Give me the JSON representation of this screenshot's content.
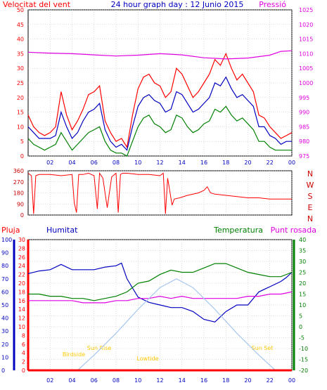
{
  "header": {
    "left_title": "Velocitat del vent",
    "center_title": "24 hour graph day : 12 Junio 2015",
    "right_title": "Pressió"
  },
  "colors": {
    "red": "#ff0000",
    "dark_red": "#cc0000",
    "green": "#008000",
    "blue": "#0000c0",
    "magenta": "#e000e0",
    "sky": "#a8c8f0",
    "yellow": "#ffc800",
    "grid": "#bbbbbb",
    "frame": "#000000"
  },
  "chart_data": [
    {
      "id": "wind",
      "type": "line",
      "title": "24 hour graph day : 12 Junio 2015",
      "ylabel_left": "Velocitat del vent",
      "ylabel_right": "Pressió",
      "ylim_left": [
        0,
        50
      ],
      "yticks_left": [
        0,
        5,
        10,
        15,
        20,
        25,
        30,
        35,
        40,
        45,
        50
      ],
      "ylim_right": [
        975,
        1025
      ],
      "yticks_right": [
        975,
        980,
        985,
        990,
        995,
        1000,
        1005,
        1010,
        1015,
        1020,
        1025
      ],
      "xlim": [
        0,
        24
      ],
      "xticks": [
        "02",
        "04",
        "06",
        "08",
        "10",
        "12",
        "14",
        "16",
        "18",
        "20",
        "22",
        "00"
      ],
      "grid": true,
      "series": [
        {
          "color": "red",
          "axis": "left",
          "x": [
            0,
            0.5,
            1,
            1.5,
            2,
            2.5,
            3,
            3.5,
            4,
            4.5,
            5,
            5.5,
            6,
            6.5,
            7,
            7.5,
            8,
            8.5,
            9,
            9.5,
            10,
            10.5,
            11,
            11.5,
            12,
            12.5,
            13,
            13.5,
            14,
            14.5,
            15,
            15.5,
            16,
            16.5,
            17,
            17.5,
            18,
            18.5,
            19,
            19.5,
            20,
            20.5,
            21,
            21.5,
            22,
            22.5,
            23,
            23.5,
            24
          ],
          "y": [
            14,
            10,
            8,
            7,
            8,
            10,
            22,
            14,
            9,
            12,
            16,
            21,
            22,
            24,
            12,
            8,
            5,
            6,
            3,
            14,
            23,
            27,
            28,
            25,
            24,
            20,
            22,
            30,
            28,
            24,
            20,
            22,
            25,
            28,
            33,
            31,
            35,
            30,
            26,
            28,
            25,
            22,
            14,
            13,
            10,
            8,
            6,
            7,
            8
          ]
        },
        {
          "color": "blue",
          "axis": "left",
          "x": [
            0,
            0.5,
            1,
            1.5,
            2,
            2.5,
            3,
            3.5,
            4,
            4.5,
            5,
            5.5,
            6,
            6.5,
            7,
            7.5,
            8,
            8.5,
            9,
            9.5,
            10,
            10.5,
            11,
            11.5,
            12,
            12.5,
            13,
            13.5,
            14,
            14.5,
            15,
            15.5,
            16,
            16.5,
            17,
            17.5,
            18,
            18.5,
            19,
            19.5,
            20,
            20.5,
            21,
            21.5,
            22,
            22.5,
            23,
            23.5,
            24
          ],
          "y": [
            10,
            8,
            6,
            6,
            6,
            7,
            15,
            10,
            6,
            8,
            12,
            15,
            16,
            18,
            9,
            5,
            3,
            4,
            2,
            10,
            17,
            20,
            21,
            19,
            18,
            15,
            16,
            22,
            21,
            18,
            15,
            16,
            18,
            20,
            25,
            24,
            27,
            23,
            20,
            21,
            19,
            17,
            10,
            10,
            7,
            6,
            4,
            5,
            5
          ]
        },
        {
          "color": "green",
          "axis": "left",
          "x": [
            0,
            0.5,
            1,
            1.5,
            2,
            2.5,
            3,
            3.5,
            4,
            4.5,
            5,
            5.5,
            6,
            6.5,
            7,
            7.5,
            8,
            8.5,
            9,
            9.5,
            10,
            10.5,
            11,
            11.5,
            12,
            12.5,
            13,
            13.5,
            14,
            14.5,
            15,
            15.5,
            16,
            16.5,
            17,
            17.5,
            18,
            18.5,
            19,
            19.5,
            20,
            20.5,
            21,
            21.5,
            22,
            22.5,
            23,
            23.5,
            24
          ],
          "y": [
            6,
            4,
            3,
            2,
            3,
            4,
            8,
            5,
            2,
            4,
            6,
            8,
            9,
            10,
            5,
            2,
            1,
            1,
            0,
            5,
            10,
            13,
            14,
            11,
            10,
            8,
            9,
            14,
            13,
            10,
            8,
            9,
            11,
            12,
            16,
            15,
            17,
            14,
            12,
            13,
            11,
            9,
            5,
            5,
            3,
            2,
            2,
            2,
            2
          ]
        },
        {
          "color": "magenta",
          "axis": "right",
          "x": [
            0,
            2,
            4,
            6,
            8,
            10,
            12,
            14,
            16,
            18,
            20,
            22,
            23,
            24
          ],
          "y": [
            1010.5,
            1010.2,
            1010,
            1009.6,
            1009.2,
            1009.5,
            1010,
            1009.6,
            1008.6,
            1008.2,
            1008.5,
            1009.5,
            1010.8,
            1011
          ]
        }
      ]
    },
    {
      "id": "direction",
      "type": "line",
      "ylim": [
        0,
        360
      ],
      "yticks": [
        0,
        90,
        180,
        270,
        360
      ],
      "ylabel_right": [
        "N",
        "W",
        "S",
        "E",
        "N"
      ],
      "xlim": [
        0,
        24
      ],
      "grid": true,
      "series": [
        {
          "color": "red",
          "x": [
            0,
            0.3,
            0.5,
            0.7,
            1,
            2,
            3,
            4,
            4.2,
            4.4,
            4.6,
            5,
            5.5,
            6,
            6.3,
            6.5,
            6.8,
            7.2,
            7.6,
            8,
            8.2,
            8.4,
            8.6,
            9,
            10,
            11,
            12,
            12.3,
            12.5,
            12.7,
            12.9,
            13.1,
            13.3,
            13.8,
            14.5,
            15,
            15.5,
            16,
            16.3,
            16.6,
            17,
            18,
            19,
            20,
            21,
            22,
            23,
            24
          ],
          "y": [
            340,
            320,
            10,
            320,
            330,
            330,
            320,
            330,
            100,
            20,
            330,
            330,
            340,
            320,
            50,
            340,
            300,
            60,
            310,
            340,
            20,
            330,
            340,
            340,
            330,
            330,
            320,
            340,
            10,
            300,
            190,
            80,
            130,
            140,
            160,
            170,
            180,
            200,
            230,
            180,
            170,
            160,
            150,
            140,
            140,
            130,
            130,
            130
          ]
        }
      ]
    },
    {
      "id": "thermo",
      "type": "line",
      "legend": [
        "Pluja",
        "Humitat",
        "Temperatura",
        "Punt rosada"
      ],
      "ylim_rain": [
        0,
        30
      ],
      "yticks_rain": [
        0,
        2,
        4,
        6,
        8,
        10,
        12,
        14,
        16,
        18,
        20,
        22,
        24,
        26,
        28,
        30
      ],
      "ylim_humidity": [
        0,
        100
      ],
      "yticks_humidity": [
        0,
        10,
        20,
        30,
        40,
        50,
        60,
        70,
        80,
        90,
        100
      ],
      "ylim_temperature": [
        -20,
        40
      ],
      "yticks_temperature": [
        -20,
        -15,
        -10,
        -5,
        0,
        5,
        10,
        15,
        20,
        25,
        30,
        35,
        40
      ],
      "xlim": [
        0,
        24
      ],
      "xticks": [
        "02",
        "04",
        "06",
        "08",
        "10",
        "12",
        "14",
        "16",
        "18",
        "20",
        "22",
        "00"
      ],
      "grid": true,
      "annotations": [
        "Birdside",
        "Sun Rise",
        "Lowtide",
        "Sun Set"
      ],
      "series": [
        {
          "name": "Humitat",
          "color": "blue",
          "axis": "humidity",
          "x": [
            0,
            1,
            2,
            3,
            4,
            5,
            6,
            7,
            8,
            8.5,
            9,
            10,
            11,
            12,
            13,
            14,
            15,
            16,
            17,
            18,
            19,
            20,
            21,
            22,
            23,
            23.5,
            24
          ],
          "y": [
            74,
            76,
            77,
            81,
            77,
            77,
            77,
            79,
            80,
            82,
            70,
            56,
            52,
            50,
            48,
            48,
            45,
            39,
            37,
            45,
            50,
            50,
            60,
            64,
            68,
            71,
            75
          ]
        },
        {
          "name": "Temperatura",
          "color": "green",
          "axis": "temperature",
          "x": [
            0,
            1,
            2,
            3,
            4,
            5,
            6,
            7,
            8,
            9,
            10,
            11,
            12,
            13,
            14,
            15,
            16,
            17,
            18,
            19,
            20,
            21,
            22,
            23,
            24
          ],
          "y": [
            15,
            15,
            14,
            14,
            13,
            13,
            12,
            13,
            14,
            16,
            20,
            21,
            24,
            26,
            25,
            25,
            27,
            29,
            29,
            27,
            25,
            24,
            23,
            23,
            25
          ]
        },
        {
          "name": "Punt rosada",
          "color": "magenta",
          "axis": "temperature",
          "x": [
            0,
            1,
            2,
            3,
            4,
            5,
            6,
            7,
            8,
            9,
            10,
            11,
            12,
            13,
            14,
            15,
            16,
            17,
            18,
            19,
            20,
            21,
            22,
            23,
            24
          ],
          "y": [
            12,
            12,
            12,
            12,
            12,
            11,
            11,
            11,
            12,
            12,
            13,
            13,
            14,
            13,
            14,
            13,
            13,
            13,
            13,
            13,
            14,
            14,
            15,
            15,
            16
          ]
        },
        {
          "color": "sky",
          "axis": "temperature",
          "x": [
            4.5,
            6,
            8,
            10,
            12,
            13.5,
            15,
            17,
            19,
            21,
            22.5
          ],
          "y": [
            -20,
            -13,
            -3,
            8,
            18,
            22,
            18,
            8,
            -3,
            -13,
            -20
          ]
        },
        {
          "name": "Pluja",
          "color": "red",
          "axis": "rain",
          "x": [
            0,
            24
          ],
          "y": [
            0,
            0
          ]
        }
      ]
    }
  ]
}
